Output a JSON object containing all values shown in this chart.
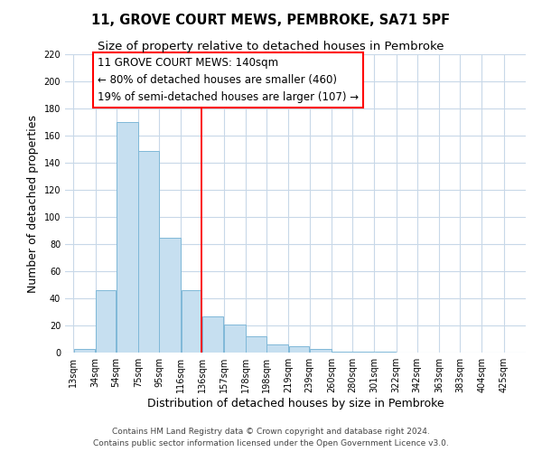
{
  "title": "11, GROVE COURT MEWS, PEMBROKE, SA71 5PF",
  "subtitle": "Size of property relative to detached houses in Pembroke",
  "xlabel": "Distribution of detached houses by size in Pembroke",
  "ylabel": "Number of detached properties",
  "bar_values": [
    3,
    46,
    170,
    149,
    85,
    46,
    27,
    21,
    12,
    6,
    5,
    3,
    1,
    1,
    1
  ],
  "bar_left_edges": [
    13,
    34,
    54,
    75,
    95,
    116,
    136,
    157,
    178,
    198,
    219,
    239,
    260,
    280,
    301
  ],
  "bar_widths": [
    21,
    20,
    21,
    20,
    21,
    20,
    21,
    21,
    20,
    21,
    20,
    21,
    20,
    21,
    21
  ],
  "xtick_labels": [
    "13sqm",
    "34sqm",
    "54sqm",
    "75sqm",
    "95sqm",
    "116sqm",
    "136sqm",
    "157sqm",
    "178sqm",
    "198sqm",
    "219sqm",
    "239sqm",
    "260sqm",
    "280sqm",
    "301sqm",
    "322sqm",
    "342sqm",
    "363sqm",
    "383sqm",
    "404sqm",
    "425sqm"
  ],
  "xtick_positions": [
    13,
    34,
    54,
    75,
    95,
    116,
    136,
    157,
    178,
    198,
    219,
    239,
    260,
    280,
    301,
    322,
    342,
    363,
    383,
    404,
    425
  ],
  "ylim": [
    0,
    220
  ],
  "yticks": [
    0,
    20,
    40,
    60,
    80,
    100,
    120,
    140,
    160,
    180,
    200,
    220
  ],
  "bar_color": "#c6dff0",
  "bar_edge_color": "#7fb8d8",
  "red_line_x": 136,
  "ann_line1": "11 GROVE COURT MEWS: 140sqm",
  "ann_line2": "← 80% of detached houses are smaller (460)",
  "ann_line3": "19% of semi-detached houses are larger (107) →",
  "footer_line1": "Contains HM Land Registry data © Crown copyright and database right 2024.",
  "footer_line2": "Contains public sector information licensed under the Open Government Licence v3.0.",
  "title_fontsize": 10.5,
  "subtitle_fontsize": 9.5,
  "axis_label_fontsize": 9,
  "tick_fontsize": 7,
  "footer_fontsize": 6.5,
  "annotation_fontsize": 8.5,
  "background_color": "#ffffff",
  "grid_color": "#c8d8e8"
}
